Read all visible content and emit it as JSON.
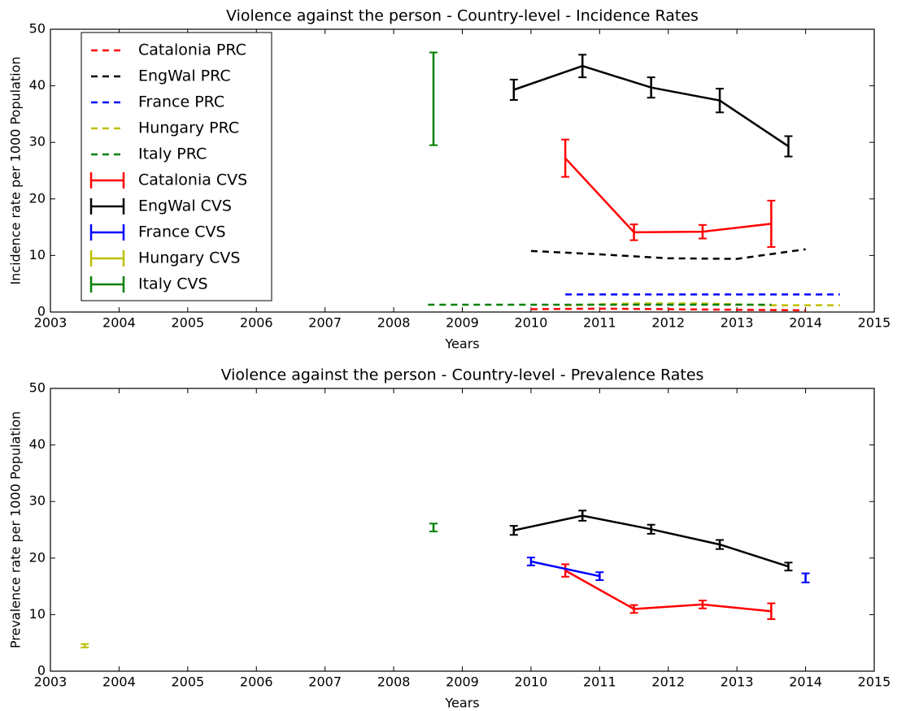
{
  "chart_data": [
    {
      "type": "line",
      "title": "Violence against the person - Country-level - Incidence Rates",
      "xlabel": "Years",
      "ylabel": "Incidence rate per 1000 Population",
      "xlim": [
        2003,
        2015
      ],
      "ylim": [
        0,
        50
      ],
      "xticks": [
        2003,
        2004,
        2005,
        2006,
        2007,
        2008,
        2009,
        2010,
        2011,
        2012,
        2013,
        2014,
        2015
      ],
      "yticks": [
        0,
        10,
        20,
        30,
        40,
        50
      ],
      "legend": "upper left",
      "series": [
        {
          "name": "Catalonia PRC",
          "color": "#ff0000",
          "style": "dashed",
          "x": [
            2010,
            2011,
            2012,
            2013,
            2014
          ],
          "values": [
            0.5,
            0.6,
            0.5,
            0.4,
            0.3
          ]
        },
        {
          "name": "EngWal PRC",
          "color": "#000000",
          "style": "dashed",
          "x": [
            2010,
            2011,
            2012,
            2013,
            2014
          ],
          "values": [
            10.8,
            10.2,
            9.5,
            9.4,
            11.1
          ]
        },
        {
          "name": "France PRC",
          "color": "#0000ff",
          "style": "dashed",
          "x": [
            2010.5,
            2011.5,
            2012.5,
            2013.5,
            2014.5
          ],
          "values": [
            3.1,
            3.1,
            3.1,
            3.1,
            3.1
          ]
        },
        {
          "name": "Hungary PRC",
          "color": "#bfbf00",
          "style": "dashed",
          "x": [
            2010.5,
            2011.5,
            2012.5,
            2013.5,
            2014.5
          ],
          "values": [
            1.2,
            1.5,
            1.5,
            1.2,
            1.2
          ]
        },
        {
          "name": "Italy PRC",
          "color": "#008000",
          "style": "dashed",
          "x": [
            2008.5,
            2009.5,
            2010.5,
            2011.5,
            2012.5,
            2013.5
          ],
          "values": [
            1.3,
            1.3,
            1.3,
            1.3,
            1.3,
            1.3
          ]
        },
        {
          "name": "Catalonia CVS",
          "color": "#ff0000",
          "style": "errorbar",
          "x": [
            2010.5,
            2011.5,
            2012.5,
            2013.5
          ],
          "values": [
            27.2,
            14.1,
            14.2,
            15.6
          ],
          "errors": [
            3.3,
            1.4,
            1.2,
            4.1
          ]
        },
        {
          "name": "EngWal CVS",
          "color": "#000000",
          "style": "errorbar",
          "x": [
            2009.75,
            2010.75,
            2011.75,
            2012.75,
            2013.75
          ],
          "values": [
            39.3,
            43.5,
            39.7,
            37.4,
            29.3
          ],
          "errors": [
            1.8,
            2.0,
            1.8,
            2.1,
            1.8
          ]
        },
        {
          "name": "France CVS",
          "color": "#0000ff",
          "style": "errorbar",
          "x": [],
          "values": [],
          "errors": []
        },
        {
          "name": "Hungary CVS",
          "color": "#bfbf00",
          "style": "errorbar",
          "x": [],
          "values": [],
          "errors": []
        },
        {
          "name": "Italy CVS",
          "color": "#008000",
          "style": "errorbar",
          "x": [
            2008.58
          ],
          "values": [
            37.7
          ],
          "errors": [
            8.2
          ]
        }
      ]
    },
    {
      "type": "line",
      "title": "Violence against the person - Country-level - Prevalence Rates",
      "xlabel": "Years",
      "ylabel": "Prevalence rate per 1000 Population",
      "xlim": [
        2003,
        2015
      ],
      "ylim": [
        0,
        50
      ],
      "xticks": [
        2003,
        2004,
        2005,
        2006,
        2007,
        2008,
        2009,
        2010,
        2011,
        2012,
        2013,
        2014,
        2015
      ],
      "yticks": [
        0,
        10,
        20,
        30,
        40,
        50
      ],
      "series": [
        {
          "color": "#ff0000",
          "style": "errorbar",
          "x": [
            2010.5,
            2011.5,
            2012.5,
            2013.5
          ],
          "values": [
            17.8,
            11.0,
            11.8,
            10.6
          ],
          "errors": [
            1.1,
            0.7,
            0.7,
            1.4
          ]
        },
        {
          "color": "#000000",
          "style": "errorbar",
          "x": [
            2009.75,
            2010.75,
            2011.75,
            2012.75,
            2013.75
          ],
          "values": [
            24.9,
            27.5,
            25.1,
            22.4,
            18.5
          ],
          "errors": [
            0.8,
            0.9,
            0.8,
            0.8,
            0.7
          ]
        },
        {
          "color": "#0000ff",
          "style": "errorbar",
          "x": [
            2010,
            2011,
            2012,
            2013,
            2014
          ],
          "values": [
            19.4,
            16.8,
            null,
            null,
            16.5
          ],
          "errors": [
            0.7,
            0.7,
            null,
            null,
            0.8
          ]
        },
        {
          "color": "#bfbf00",
          "style": "errorbar",
          "x": [
            2003.5
          ],
          "values": [
            4.5
          ],
          "errors": [
            0.3
          ]
        },
        {
          "color": "#008000",
          "style": "errorbar",
          "x": [
            2008.58
          ],
          "values": [
            25.4
          ],
          "errors": [
            0.7
          ]
        }
      ]
    }
  ]
}
